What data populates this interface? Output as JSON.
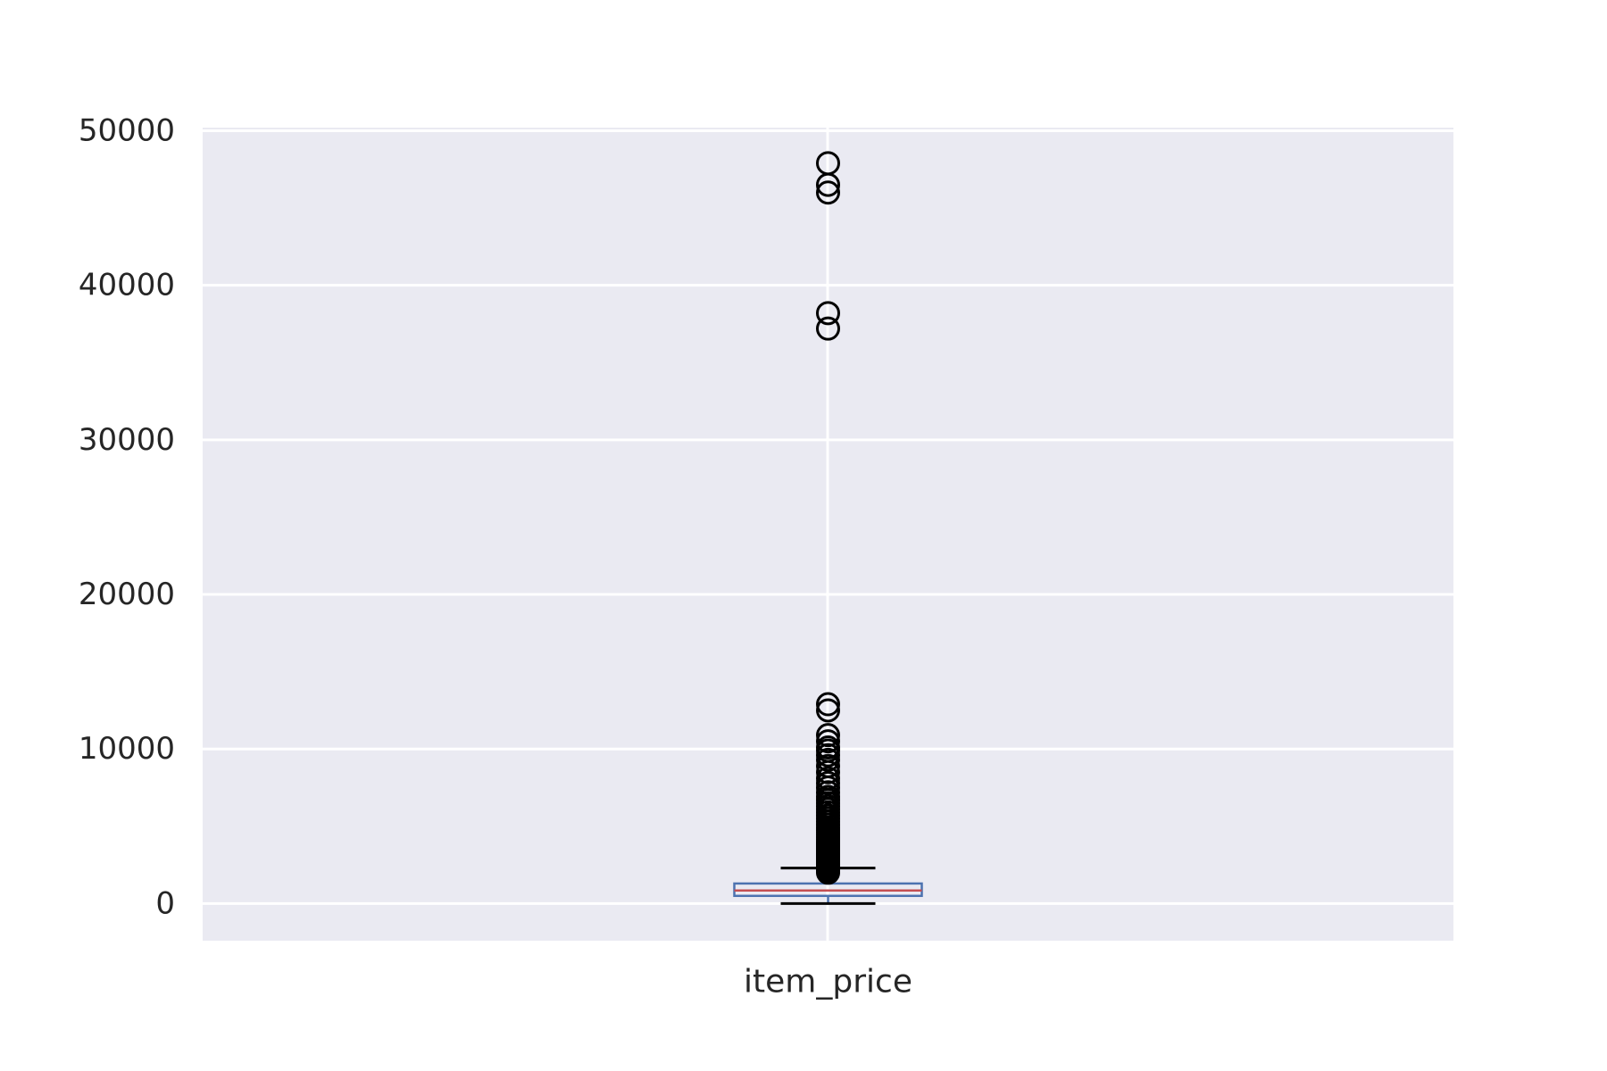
{
  "chart_data": {
    "type": "box",
    "title": "",
    "xlabel": "",
    "ylabel": "",
    "categories": [
      "item_price"
    ],
    "ylim": [
      -2400,
      50200
    ],
    "yticks": [
      0,
      10000,
      20000,
      30000,
      40000,
      50000
    ],
    "grid": true,
    "colors": {
      "background": "#eaeaf2",
      "grid": "#ffffff",
      "box": "#4c72b0",
      "median": "#c44e52",
      "whisker": "#000000",
      "flier": "#000000"
    },
    "boxes": [
      {
        "category": "item_price",
        "whisker_low": 0,
        "q1": 500,
        "median": 850,
        "q3": 1300,
        "whisker_high": 2300,
        "fliers": [
          2000,
          2100,
          2200,
          2300,
          2400,
          2500,
          2600,
          2700,
          2800,
          2900,
          3000,
          3100,
          3200,
          3300,
          3400,
          3500,
          3600,
          3700,
          3800,
          3900,
          4000,
          4150,
          4300,
          4450,
          4600,
          4750,
          4900,
          5100,
          5300,
          5500,
          5700,
          5900,
          6100,
          6300,
          6500,
          6700,
          6900,
          7200,
          7500,
          7800,
          8100,
          8500,
          8900,
          9300,
          9600,
          9900,
          10100,
          10500,
          10900,
          12500,
          12900,
          37200,
          38200,
          46000,
          46500,
          47900
        ]
      }
    ]
  }
}
